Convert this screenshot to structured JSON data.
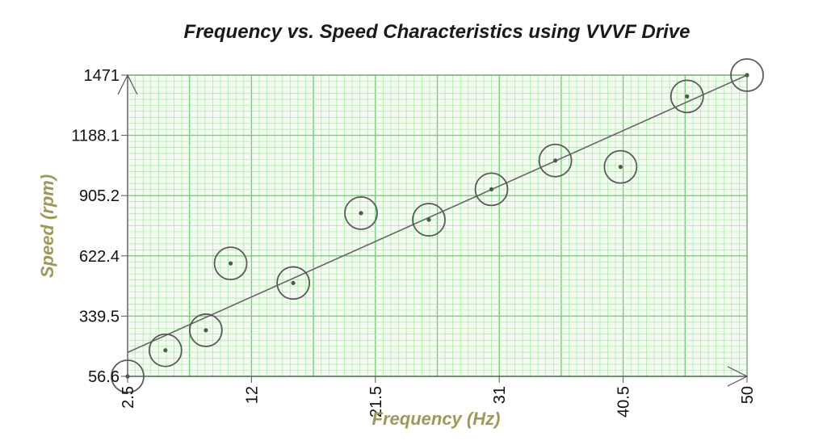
{
  "chart_data": {
    "type": "scatter",
    "title": "Frequency vs. Speed Characteristics using VVVF Drive",
    "xlabel": "Frequency (Hz)",
    "ylabel": "Speed (rpm)",
    "xlim": [
      2.5,
      50
    ],
    "ylim": [
      56.6,
      1471
    ],
    "x_ticks": [
      "2.5",
      "12",
      "21.5",
      "31",
      "40.5",
      "50"
    ],
    "y_ticks": [
      "56.6",
      "339.5",
      "622.4",
      "905.2",
      "1188.1",
      "1471"
    ],
    "grid": true,
    "points": [
      {
        "x": 2.5,
        "y": 56.6
      },
      {
        "x": 5.4,
        "y": 179
      },
      {
        "x": 8.5,
        "y": 273
      },
      {
        "x": 10.4,
        "y": 587
      },
      {
        "x": 15.2,
        "y": 495
      },
      {
        "x": 20.4,
        "y": 823
      },
      {
        "x": 25.6,
        "y": 792
      },
      {
        "x": 30.4,
        "y": 935
      },
      {
        "x": 35.3,
        "y": 1070
      },
      {
        "x": 40.3,
        "y": 1040
      },
      {
        "x": 45.4,
        "y": 1371
      },
      {
        "x": 50,
        "y": 1471
      }
    ],
    "trend_line": {
      "x": [
        2.5,
        50
      ],
      "y": [
        169,
        1471
      ]
    },
    "colors": {
      "grid_minor": "#a6e6a0",
      "grid_major": "#7ec882",
      "grid_border": "#6a9a6a",
      "point": "#555555",
      "marker_ring": "#5a5a5a",
      "trend": "#666666",
      "axis_label": "#9c9a5a"
    }
  }
}
